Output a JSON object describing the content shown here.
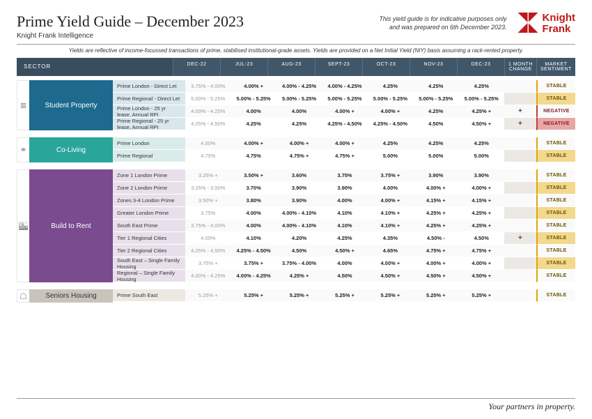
{
  "header": {
    "title": "Prime Yield Guide – December 2023",
    "subtitle": "Knight Frank Intelligence",
    "disclaimer_l1": "This yield guide is for indicative purposes only",
    "disclaimer_l2": "and was prepared on 6th December 2023.",
    "brand": "Knight Frank"
  },
  "topnote": "Yields are reflective of income-focussed transactions of prime, stabilised institutional-grade assets. Yields are provided on a Net Initial Yield (NIY) basis assuming a rack-rented property.",
  "columns": {
    "sector": "SECTOR",
    "c0": "DEC-22",
    "c1": "JUL-23",
    "c2": "AUG-23",
    "c3": "SEPT-23",
    "c4": "OCT-23",
    "c5": "NOV-23",
    "c6": "DEC-23",
    "chg": "1 MONTH CHANGE",
    "sent": "MARKET SENTIMENT"
  },
  "colors": {
    "student": "#1d6a8e",
    "coliving": "#2aa59a",
    "btr": "#7a4b8e",
    "seniors": "#c9c3bb",
    "header_bg": "#384d5e",
    "stable_bg": "#f3d98e",
    "negative_bg": "#e8a7a7",
    "brand": "#c01818"
  },
  "sectors": [
    {
      "key": "sp",
      "label": "Student Property",
      "icon": "≣",
      "bg": "sp-bg",
      "sub": "sp-sub",
      "rows": [
        {
          "label": "Prime London - Direct Let",
          "v": [
            "3.75% - 4.00%",
            "4.00% +",
            "4.00% - 4.25%",
            "4.00% - 4.25%",
            "4.25%",
            "4.25%",
            "4.25%"
          ],
          "chg": "",
          "sent": "STABLE",
          "sentc": "sent-stable"
        },
        {
          "label": "Prime Regional - Direct Let",
          "v": [
            "5.00% - 5.25%",
            "5.00% - 5.25%",
            "5.00% - 5.25%",
            "5.00% - 5.25%",
            "5.00% - 5.25%",
            "5.00% - 5.25%",
            "5.00% - 5.25%"
          ],
          "chg": "",
          "sent": "STABLE",
          "sentc": "sent-stable"
        },
        {
          "label": "Prime London - 25 yr lease, Annual RPI",
          "v": [
            "4.00% - 4.25%",
            "4.00%",
            "4.00%",
            "4.00% +",
            "4.00% +",
            "4.25%",
            "4.25% +"
          ],
          "chg": "+",
          "sent": "NEGATIVE",
          "sentc": "sent-neg"
        },
        {
          "label": "Prime Regional - 25 yr lease, Annual RPI",
          "v": [
            "4.25% - 4.50%",
            "4.25%",
            "4.25%",
            "4.25% - 4.50%",
            "4.25% - 4.50%",
            "4.50%",
            "4.50% +"
          ],
          "chg": "+",
          "sent": "NEGATIVE",
          "sentc": "sent-neg"
        }
      ]
    },
    {
      "key": "cl",
      "label": "Co-Living",
      "icon": "⚭",
      "bg": "cl-bg",
      "sub": "cl-sub",
      "rows": [
        {
          "label": "Prime London",
          "v": [
            "4.00%",
            "4.00% +",
            "4.00% +",
            "4.00% +",
            "4.25%",
            "4.25%",
            "4.25%"
          ],
          "chg": "",
          "sent": "STABLE",
          "sentc": "sent-stable"
        },
        {
          "label": "Prime Regional",
          "v": [
            "4.75%",
            "4.75%",
            "4.75% +",
            "4.75% +",
            "5.00%",
            "5.00%",
            "5.00%"
          ],
          "chg": "",
          "sent": "STABLE",
          "sentc": "sent-stable"
        }
      ]
    },
    {
      "key": "btr",
      "label": "Build to Rent",
      "icon": "🏙",
      "bg": "btr-bg",
      "sub": "btr-sub",
      "rows": [
        {
          "label": "Zone 1 London Prime",
          "v": [
            "3.25% +",
            "3.50% +",
            "3.60%",
            "3.75%",
            "3.75% +",
            "3.90%",
            "3.90%"
          ],
          "chg": "",
          "sent": "STABLE",
          "sentc": "sent-stable"
        },
        {
          "label": "Zone 2 London Prime",
          "v": [
            "3.25% - 3.50%",
            "3.70%",
            "3.90%",
            "3.90%",
            "4.00%",
            "4.00% +",
            "4.00% +"
          ],
          "chg": "",
          "sent": "STABLE",
          "sentc": "sent-stable"
        },
        {
          "label": "Zones 3-4 London Prime",
          "v": [
            "3.50% +",
            "3.80%",
            "3.90%",
            "4.00%",
            "4.00% +",
            "4.15% +",
            "4.15% +"
          ],
          "chg": "",
          "sent": "STABLE",
          "sentc": "sent-stable"
        },
        {
          "label": "Greater London Prime",
          "v": [
            "3.75%",
            "4.00%",
            "4.00% - 4.10%",
            "4.10%",
            "4.10% +",
            "4.25% +",
            "4.25% +"
          ],
          "chg": "",
          "sent": "STABLE",
          "sentc": "sent-stable"
        },
        {
          "label": "South East Prime",
          "v": [
            "3.75% - 4.00%",
            "4.00%",
            "4.00% - 4.10%",
            "4.10%",
            "4.10% +",
            "4.25% +",
            "4.25% +"
          ],
          "chg": "",
          "sent": "STABLE",
          "sentc": "sent-stable"
        },
        {
          "label": "Tier 1 Regional Cities",
          "v": [
            "4.00%",
            "4.10%",
            "4.20%",
            "4.25%",
            "4.35%",
            "4.50% -",
            "4.50%"
          ],
          "chg": "+",
          "sent": "STABLE",
          "sentc": "sent-stable"
        },
        {
          "label": "Tier 2 Regional Cities",
          "v": [
            "4.25% - 4.50%",
            "4.25% - 4.50%",
            "4.50%",
            "4.50% +",
            "4.65%",
            "4.75% +",
            "4.75% +"
          ],
          "chg": "",
          "sent": "STABLE",
          "sentc": "sent-stable"
        },
        {
          "label": "South East – Single Family Housing",
          "v": [
            "3.75% +",
            "3.75% +",
            "3.75% - 4.00%",
            "4.00%",
            "4.00% +",
            "4.00% +",
            "4.00% +"
          ],
          "chg": "",
          "sent": "STABLE",
          "sentc": "sent-stable"
        },
        {
          "label": "Regional – Single Family Housing",
          "v": [
            "4.00% - 4.25%",
            "4.00% - 4.25%",
            "4.25% +",
            "4.50%",
            "4.50% +",
            "4.50% +",
            "4.50% +"
          ],
          "chg": "",
          "sent": "STABLE",
          "sentc": "sent-stable"
        }
      ]
    },
    {
      "key": "sh",
      "label": "Seniors Housing",
      "icon": "☖",
      "bg": "sh-bg",
      "sub": "sh-sub",
      "rows": [
        {
          "label": "Prime South East",
          "v": [
            "5.25% +",
            "5.25% +",
            "5.25% +",
            "5.25% +",
            "5.25% +",
            "5.25% +",
            "5.25% +"
          ],
          "chg": "",
          "sent": "STABLE",
          "sentc": "sent-stable"
        }
      ]
    }
  ],
  "footer": "Your partners in property."
}
